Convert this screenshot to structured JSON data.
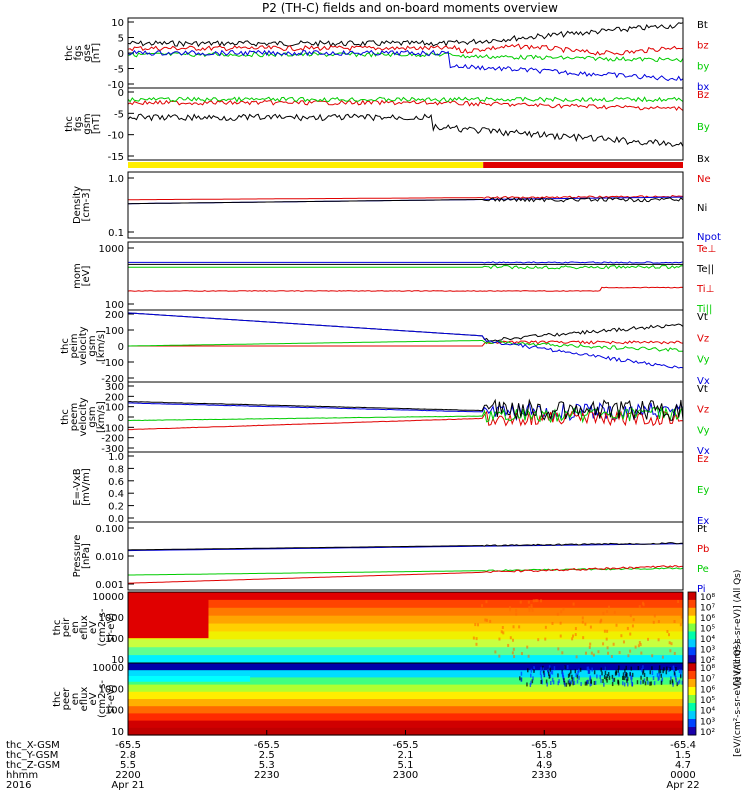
{
  "title": "P2 (TH-C) fields and on-board moments overview",
  "colors": {
    "black": "#000000",
    "red": "#e00000",
    "green": "#00cc00",
    "blue": "#0000dd",
    "yellow": "#ffee00"
  },
  "panels": [
    {
      "id": "fgs_gse",
      "ylabel": [
        "thc",
        "fgs",
        "gse",
        "[nT]"
      ],
      "yticks": [
        "10",
        "5",
        "0",
        "-5",
        "-10"
      ],
      "ylim": [
        -11,
        11
      ],
      "legend": [
        {
          "label": "Bt",
          "color": "black"
        },
        {
          "label": "bz",
          "color": "red"
        },
        {
          "label": "by",
          "color": "green"
        },
        {
          "label": "bx",
          "color": "blue"
        }
      ]
    },
    {
      "id": "fgs_gsm",
      "ylabel": [
        "thc",
        "fgs",
        "gsm",
        "[nT]"
      ],
      "yticks": [
        "0",
        "-5",
        "-10",
        "-15"
      ],
      "ylim": [
        -18,
        4
      ],
      "legend": [
        {
          "label": "Bz",
          "color": "red"
        },
        {
          "label": "By",
          "color": "green"
        },
        {
          "label": "Bx",
          "color": "black"
        }
      ]
    },
    {
      "id": "density",
      "ylabel": [
        "Density",
        "[cm-3]"
      ],
      "yticks": [
        "1.0",
        "0.1"
      ],
      "log": true,
      "ylim": [
        0.1,
        1.2
      ],
      "legend": [
        {
          "label": "Ne",
          "color": "red"
        },
        {
          "label": "Ni",
          "color": "black"
        },
        {
          "label": "Npot",
          "color": "blue"
        }
      ]
    },
    {
      "id": "temp",
      "ylabel": [
        "mom",
        "[eV]"
      ],
      "yticks": [
        "1000",
        "100"
      ],
      "log": true,
      "ylim": [
        50,
        3000
      ],
      "legend": [
        {
          "label": "Te⊥",
          "color": "red"
        },
        {
          "label": "Te||",
          "color": "black"
        },
        {
          "label": "Ti⊥",
          "color": "red"
        },
        {
          "label": "Ti||",
          "color": "green"
        }
      ]
    },
    {
      "id": "peim_vel",
      "ylabel": [
        "thc",
        "peim",
        "velocity",
        "gsm",
        "[km/s]"
      ],
      "yticks": [
        "200",
        "100",
        "0",
        "-100",
        "-200"
      ],
      "ylim": [
        -220,
        230
      ],
      "legend": [
        {
          "label": "Vt",
          "color": "black"
        },
        {
          "label": "Vz",
          "color": "red"
        },
        {
          "label": "Vy",
          "color": "green"
        },
        {
          "label": "Vx",
          "color": "blue"
        }
      ]
    },
    {
      "id": "peem_vel",
      "ylabel": [
        "thc",
        "peem",
        "velocity",
        "gsm",
        "[km/s]"
      ],
      "yticks": [
        "300",
        "200",
        "100",
        "0",
        "-100",
        "-200",
        "-300"
      ],
      "ylim": [
        -320,
        320
      ],
      "legend": [
        {
          "label": "Vt",
          "color": "black"
        },
        {
          "label": "Vz",
          "color": "red"
        },
        {
          "label": "Vy",
          "color": "green"
        },
        {
          "label": "Vx",
          "color": "blue"
        }
      ]
    },
    {
      "id": "efield",
      "ylabel": [
        "E=-VxB",
        "[mV/m]"
      ],
      "yticks": [
        "1.0",
        "0.8",
        "0.6",
        "0.4",
        "0.2",
        "0.0"
      ],
      "ylim": [
        0,
        1
      ],
      "legend": [
        {
          "label": "Ez",
          "color": "red"
        },
        {
          "label": "Ey",
          "color": "green"
        },
        {
          "label": "Ex",
          "color": "blue"
        }
      ]
    },
    {
      "id": "pressure",
      "ylabel": [
        "Pressure",
        "[nPa]"
      ],
      "yticks": [
        "0.100",
        "0.010",
        "0.001"
      ],
      "log": true,
      "ylim": [
        0.0008,
        0.3
      ],
      "legend": [
        {
          "label": "Pt",
          "color": "black"
        },
        {
          "label": "Pb",
          "color": "red"
        },
        {
          "label": "Pe",
          "color": "green"
        },
        {
          "label": "Pi",
          "color": "blue"
        }
      ]
    },
    {
      "id": "peir_spec",
      "ylabel": [
        "thc",
        "peir",
        "en",
        "eflux",
        "eV",
        "(cm2-s-",
        "sr-eV)"
      ],
      "yticks": [
        "10000",
        "1000",
        "100",
        "10"
      ]
    },
    {
      "id": "peer_spec",
      "ylabel": [
        "thc",
        "peer",
        "en",
        "eflux",
        "eV",
        "(cm2-s-",
        "sr-eV)"
      ],
      "yticks": [
        "10000",
        "1000",
        "100",
        "10"
      ]
    }
  ],
  "colorbar": {
    "ticks": [
      "10⁸",
      "10⁷",
      "10⁶",
      "10⁵",
      "10⁴",
      "10³",
      "10²"
    ],
    "label": "[eV/(cm²-s-sr-eV)] (All Qs)"
  },
  "xaxis": {
    "rows_labels": [
      "thc_X-GSM",
      "thc_Y-GSM",
      "thc_Z-GSM",
      "hhmm",
      "2016"
    ],
    "ticks": [
      {
        "x": "-65.5",
        "X": "2.8",
        "Y": "5.5",
        "hhmm": "2200",
        "date": "Apr 21"
      },
      {
        "x": "-65.5",
        "X": "2.5",
        "Y": "5.3",
        "hhmm": "2230",
        "date": ""
      },
      {
        "x": "-65.5",
        "X": "2.1",
        "Y": "5.1",
        "hhmm": "2300",
        "date": ""
      },
      {
        "x": "-65.5",
        "X": "1.8",
        "Y": "4.9",
        "hhmm": "2330",
        "date": ""
      },
      {
        "x": "-65.4",
        "X": "1.5",
        "Y": "4.7",
        "hhmm": "0000",
        "date": "Apr 22"
      }
    ]
  },
  "mode_bar": [
    {
      "from": "2200",
      "to": "2318",
      "color": "yellow"
    },
    {
      "from": "2318",
      "to": "0000",
      "color": "red"
    }
  ]
}
